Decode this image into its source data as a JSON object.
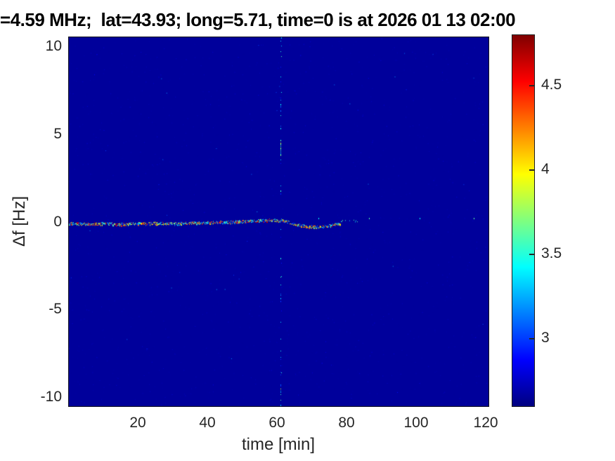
{
  "title": "=4.59 MHz;  lat=43.93; long=5.71, time=0 is at 2026 01 13 02:00",
  "chart_data": {
    "type": "heatmap",
    "title": "=4.59 MHz;  lat=43.93; long=5.71, time=0 is at 2026 01 13 02:00",
    "xlabel": "time [min]",
    "ylabel": "Δf [Hz]",
    "xlim": [
      0,
      121
    ],
    "ylim": [
      -10.55,
      10.55
    ],
    "x_ticks": [
      20,
      40,
      60,
      80,
      100,
      120
    ],
    "x_tick_labels": [
      "20",
      "40",
      "60",
      "80",
      "100",
      "120"
    ],
    "y_ticks": [
      10,
      5,
      0,
      -5,
      -10
    ],
    "y_tick_labels": [
      "10",
      "5",
      "0",
      "-5",
      "-10"
    ],
    "colormap": "jet",
    "clim": [
      2.59,
      4.8
    ],
    "colorbar_ticks": [
      4.5,
      4,
      3.5,
      3
    ],
    "colorbar_tick_labels": [
      "4.5",
      "4",
      "3.5",
      "3"
    ],
    "background_value": 2.65,
    "grid": false,
    "legend": "none",
    "echo_trace": [
      [
        0,
        -0.1
      ],
      [
        5,
        -0.12
      ],
      [
        10,
        -0.1
      ],
      [
        15,
        -0.13
      ],
      [
        20,
        -0.1
      ],
      [
        25,
        -0.08
      ],
      [
        30,
        -0.09
      ],
      [
        35,
        -0.06
      ],
      [
        40,
        -0.05
      ],
      [
        45,
        -0.02
      ],
      [
        50,
        0.02
      ],
      [
        54,
        0.06
      ],
      [
        58,
        0.1
      ],
      [
        61,
        0.08
      ],
      [
        63,
        0.0
      ],
      [
        65,
        -0.12
      ],
      [
        67,
        -0.22
      ],
      [
        70,
        -0.28
      ],
      [
        72,
        -0.3
      ],
      [
        74,
        -0.26
      ],
      [
        76,
        -0.18
      ],
      [
        78,
        -0.12
      ]
    ],
    "echo_trace_value_range": [
      2.9,
      4.75
    ],
    "echo_tail": {
      "t_start": 78,
      "t_end": 83,
      "df": 0.06
    },
    "vertical_artifact_time": 61,
    "sparse_dots": [
      {
        "t": 72.0,
        "df": 0.22
      },
      {
        "t": 86.5,
        "df": 0.22
      },
      {
        "t": 101.0,
        "df": 0.22
      },
      {
        "t": 116.5,
        "df": 0.22
      }
    ]
  },
  "colors": {
    "figure_background": "#ffffff",
    "title_text": "#000000",
    "axis_text": "#262626",
    "plot_border": "#141414",
    "jet_stops": [
      "#000080",
      "#0000ff",
      "#00ffff",
      "#ffff00",
      "#ff0000",
      "#800000"
    ],
    "jet_stop_positions": [
      0,
      0.125,
      0.375,
      0.625,
      0.875,
      1
    ]
  }
}
